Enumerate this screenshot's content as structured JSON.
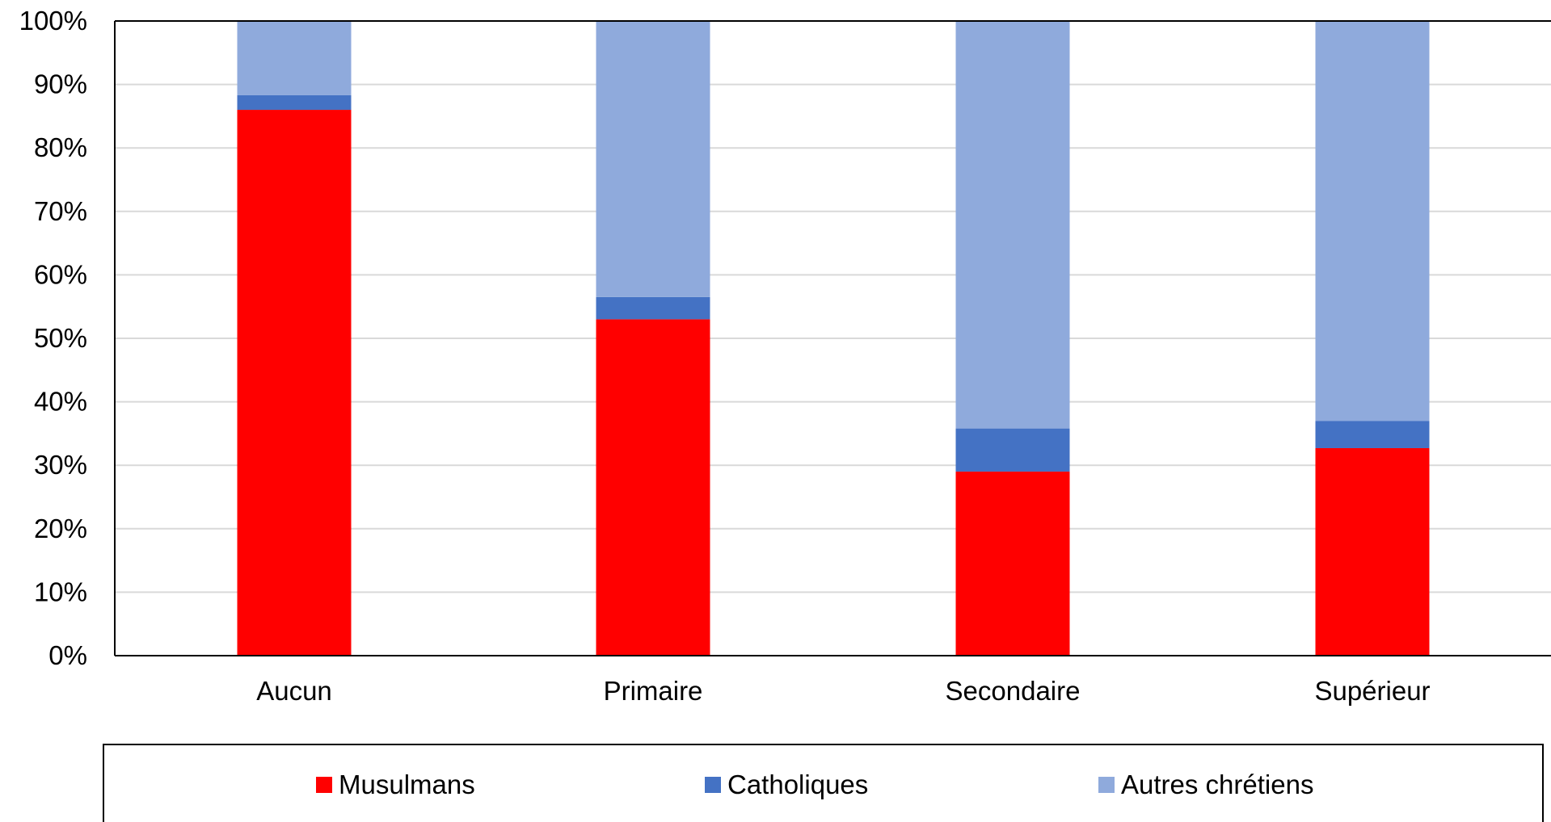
{
  "chart_data": {
    "type": "bar",
    "stacked": true,
    "normalized": true,
    "categories": [
      "Aucun",
      "Primaire",
      "Secondaire",
      "Supérieur"
    ],
    "series": [
      {
        "name": "Musulmans",
        "color": "#ff0000",
        "values": [
          86,
          53,
          29,
          32.7
        ]
      },
      {
        "name": "Catholiques",
        "color": "#4472c4",
        "values": [
          2.3,
          3.5,
          6.8,
          4.3
        ]
      },
      {
        "name": "Autres chrétiens",
        "color": "#8faadc",
        "values": [
          11.7,
          43.5,
          64.2,
          63
        ]
      }
    ],
    "y_ticks": [
      "0%",
      "10%",
      "20%",
      "30%",
      "40%",
      "50%",
      "60%",
      "70%",
      "80%",
      "90%",
      "100%"
    ],
    "ylim": [
      0,
      100
    ],
    "y_format": "percent",
    "grid": true,
    "legend_position": "bottom",
    "title": "",
    "xlabel": "",
    "ylabel": ""
  }
}
